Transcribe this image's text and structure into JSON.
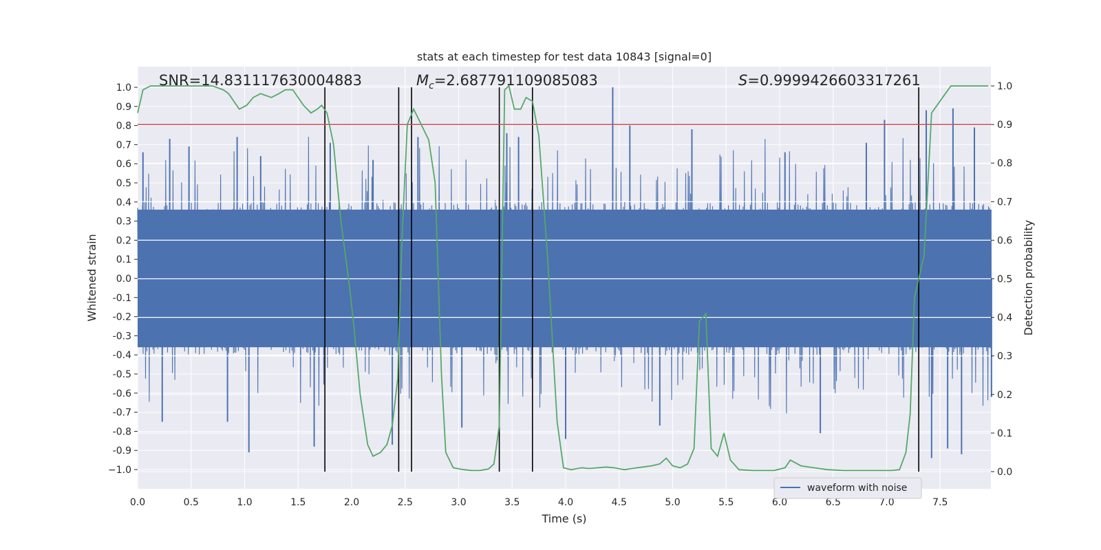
{
  "chart_data": {
    "type": "line",
    "title": "stats at each timestep for test data 10843 [signal=0]",
    "xlabel": "Time (s)",
    "ylabel": "Whitened strain",
    "y2label": "Detection probability",
    "xlim": [
      0.0,
      8.0
    ],
    "ylim": [
      -1.05,
      1.05
    ],
    "y2lim": [
      -0.025,
      1.025
    ],
    "xticks": [
      "0.0",
      "0.5",
      "1.0",
      "1.5",
      "2.0",
      "2.5",
      "3.0",
      "3.5",
      "4.0",
      "4.5",
      "5.0",
      "5.5",
      "6.0",
      "6.5",
      "7.0",
      "7.5"
    ],
    "xtick_values": [
      0.0,
      0.5,
      1.0,
      1.5,
      2.0,
      2.5,
      3.0,
      3.5,
      4.0,
      4.5,
      5.0,
      5.5,
      6.0,
      6.5,
      7.0,
      7.5
    ],
    "yticks": [
      "1.0",
      "0.9",
      "0.8",
      "0.7",
      "0.6",
      "0.5",
      "0.4",
      "0.3",
      "0.2",
      "0.1",
      "0.0",
      "-0.1",
      "-0.2",
      "-0.3",
      "-0.4",
      "-0.5",
      "-0.6",
      "-0.7",
      "-0.8",
      "-0.9",
      "−1.0"
    ],
    "ytick_values": [
      1.0,
      0.9,
      0.8,
      0.7,
      0.6,
      0.5,
      0.4,
      0.3,
      0.2,
      0.1,
      0.0,
      -0.1,
      -0.2,
      -0.3,
      -0.4,
      -0.5,
      -0.6,
      -0.7,
      -0.8,
      -0.9,
      -1.0
    ],
    "y2ticks": [
      "1.0",
      "0.9",
      "0.8",
      "0.7",
      "0.6",
      "0.5",
      "0.4",
      "0.3",
      "0.2",
      "0.1",
      "0.0"
    ],
    "y2tick_values": [
      1.0,
      0.9,
      0.8,
      0.7,
      0.6,
      0.5,
      0.4,
      0.3,
      0.2,
      0.1,
      0.0
    ],
    "annotations": {
      "snr": "SNR=14.831117630004883",
      "mc_symbol": "M",
      "mc_sub": "c",
      "mc_value": "=2.687791109085083",
      "s_symbol": "S",
      "s_value": "=0.9999426603317261"
    },
    "threshold": {
      "y2": 0.9,
      "color": "#c44e52"
    },
    "vlines_x": [
      1.75,
      2.44,
      2.56,
      3.38,
      3.69,
      7.3
    ],
    "series": [
      {
        "name": "waveform with noise",
        "axis": "left",
        "color": "#4c72b0",
        "envelope_note": "dense noise, core amplitude about ±0.4, spikes up to about ±0.9",
        "spike_peaks": [
          [
            0.05,
            0.66
          ],
          [
            0.3,
            0.73
          ],
          [
            0.48,
            0.69
          ],
          [
            0.93,
            0.74
          ],
          [
            1.15,
            0.64
          ],
          [
            1.8,
            0.71
          ],
          [
            2.2,
            0.62
          ],
          [
            2.62,
            0.74
          ],
          [
            3.45,
            0.76
          ],
          [
            3.56,
            0.74
          ],
          [
            4.44,
            1.0
          ],
          [
            4.6,
            0.8
          ],
          [
            5.18,
            0.78
          ],
          [
            6.05,
            0.66
          ],
          [
            6.81,
            0.71
          ],
          [
            6.98,
            0.83
          ],
          [
            7.37,
            0.88
          ],
          [
            7.62,
            0.89
          ],
          [
            7.82,
            0.79
          ]
        ],
        "spike_troughs": [
          [
            0.23,
            -0.75
          ],
          [
            0.84,
            -0.75
          ],
          [
            1.04,
            -0.91
          ],
          [
            1.65,
            -0.88
          ],
          [
            2.38,
            -0.87
          ],
          [
            3.03,
            -0.78
          ],
          [
            4.0,
            -0.84
          ],
          [
            4.88,
            -0.77
          ],
          [
            6.38,
            -0.81
          ],
          [
            7.42,
            -0.94
          ],
          [
            7.57,
            -0.89
          ],
          [
            7.7,
            -0.92
          ],
          [
            7.98,
            -0.62
          ]
        ]
      },
      {
        "name": "detection probability",
        "axis": "right",
        "color": "#55a868",
        "x": [
          0.0,
          0.05,
          0.12,
          0.3,
          0.5,
          0.7,
          0.8,
          0.85,
          0.95,
          1.02,
          1.08,
          1.15,
          1.25,
          1.32,
          1.38,
          1.45,
          1.55,
          1.62,
          1.68,
          1.72,
          1.77,
          1.83,
          1.9,
          1.98,
          2.02,
          2.08,
          2.15,
          2.2,
          2.27,
          2.33,
          2.38,
          2.43,
          2.47,
          2.52,
          2.58,
          2.65,
          2.72,
          2.78,
          2.84,
          2.88,
          2.95,
          3.05,
          3.12,
          3.2,
          3.28,
          3.33,
          3.38,
          3.43,
          3.47,
          3.52,
          3.58,
          3.63,
          3.69,
          3.75,
          3.83,
          3.92,
          3.98,
          4.05,
          4.15,
          4.22,
          4.3,
          4.38,
          4.45,
          4.55,
          4.62,
          4.72,
          4.8,
          4.88,
          4.94,
          5.0,
          5.07,
          5.14,
          5.2,
          5.25,
          5.31,
          5.36,
          5.42,
          5.48,
          5.54,
          5.62,
          5.75,
          5.95,
          6.05,
          6.1,
          6.2,
          6.32,
          6.45,
          6.6,
          6.75,
          6.95,
          7.05,
          7.12,
          7.18,
          7.22,
          7.26,
          7.3,
          7.35,
          7.42,
          7.6,
          7.8,
          7.95
        ],
        "y": [
          0.93,
          0.99,
          1.0,
          1.0,
          1.0,
          1.0,
          0.99,
          0.98,
          0.94,
          0.95,
          0.97,
          0.98,
          0.97,
          0.98,
          0.99,
          0.99,
          0.95,
          0.93,
          0.94,
          0.95,
          0.93,
          0.85,
          0.65,
          0.48,
          0.38,
          0.2,
          0.07,
          0.04,
          0.05,
          0.07,
          0.12,
          0.24,
          0.6,
          0.9,
          0.94,
          0.9,
          0.86,
          0.75,
          0.25,
          0.05,
          0.01,
          0.005,
          0.003,
          0.003,
          0.007,
          0.02,
          0.12,
          0.99,
          1.0,
          0.94,
          0.94,
          0.97,
          0.96,
          0.87,
          0.56,
          0.13,
          0.01,
          0.005,
          0.01,
          0.008,
          0.01,
          0.012,
          0.01,
          0.005,
          0.008,
          0.012,
          0.015,
          0.02,
          0.035,
          0.015,
          0.01,
          0.02,
          0.06,
          0.39,
          0.41,
          0.06,
          0.04,
          0.1,
          0.03,
          0.005,
          0.003,
          0.003,
          0.01,
          0.03,
          0.015,
          0.01,
          0.005,
          0.003,
          0.003,
          0.003,
          0.003,
          0.005,
          0.05,
          0.15,
          0.45,
          0.5,
          0.56,
          0.93,
          1.0,
          1.0,
          1.0
        ]
      }
    ],
    "legend": {
      "position": "lower-right",
      "entries": [
        "waveform with noise"
      ]
    }
  }
}
